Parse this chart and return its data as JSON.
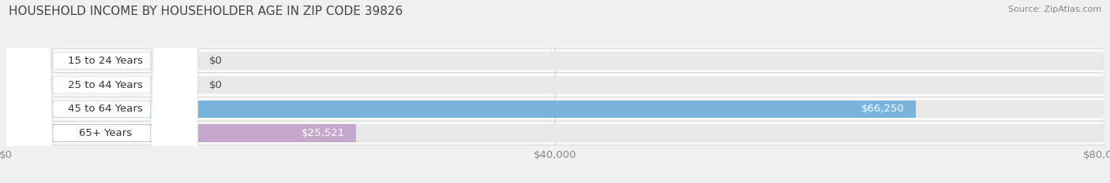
{
  "title": "HOUSEHOLD INCOME BY HOUSEHOLDER AGE IN ZIP CODE 39826",
  "source": "Source: ZipAtlas.com",
  "categories": [
    "15 to 24 Years",
    "25 to 44 Years",
    "45 to 64 Years",
    "65+ Years"
  ],
  "values": [
    0,
    0,
    66250,
    25521
  ],
  "bar_colors": [
    "#f2c49e",
    "#e8a5a5",
    "#7ab3de",
    "#c5a8cc"
  ],
  "xlim": [
    0,
    80000
  ],
  "xticks": [
    0,
    40000,
    80000
  ],
  "xticklabels": [
    "$0",
    "$40,000",
    "$80,000"
  ],
  "bar_height": 0.72,
  "background_color": "#f0f0f0",
  "bar_bg_color": "#e8e8e8",
  "row_bg_color": "#f8f8f8",
  "label_fontsize": 9.5,
  "title_fontsize": 11,
  "source_fontsize": 8,
  "value_label_color_inside": "#ffffff",
  "value_label_color_outside": "#444444",
  "label_text_color": "#333333",
  "grid_color": "#cccccc",
  "tick_color": "#888888"
}
